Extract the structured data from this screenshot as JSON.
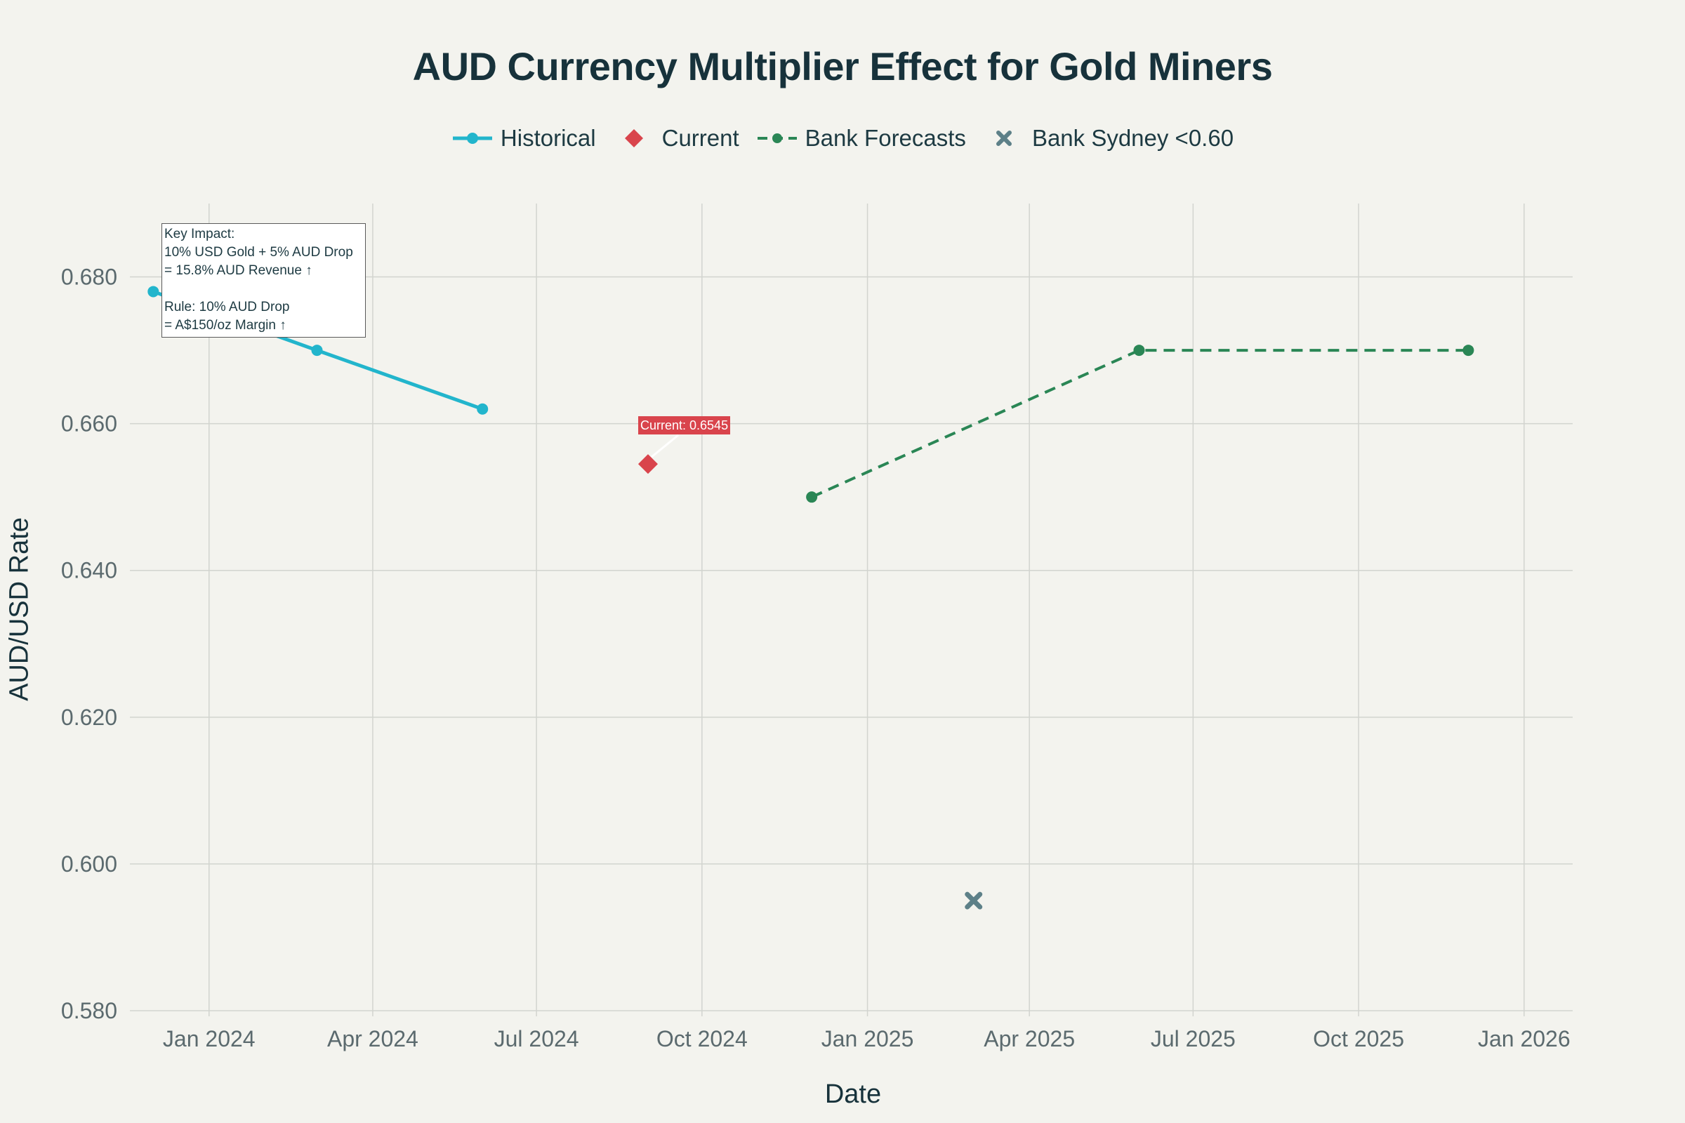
{
  "chart_data": {
    "type": "line",
    "title": "AUD Currency Multiplier Effect for Gold Miners",
    "xlabel": "Date",
    "ylabel": "AUD/USD Rate",
    "x_range": [
      "2023-11-18",
      "2026-01-28"
    ],
    "ylim": [
      0.58,
      0.69
    ],
    "y_ticks": [
      0.58,
      0.6,
      0.62,
      0.64,
      0.66,
      0.68
    ],
    "y_tick_labels": [
      "0.580",
      "0.600",
      "0.620",
      "0.640",
      "0.660",
      "0.680"
    ],
    "x_ticks": [
      "2024-01-01",
      "2024-04-01",
      "2024-07-01",
      "2024-10-01",
      "2025-01-01",
      "2025-04-01",
      "2025-07-01",
      "2025-10-01",
      "2026-01-01"
    ],
    "x_tick_labels": [
      "Jan 2024",
      "Apr 2024",
      "Jul 2024",
      "Oct 2024",
      "Jan 2025",
      "Apr 2025",
      "Jul 2025",
      "Oct 2025",
      "Jan 2026"
    ],
    "grid": true,
    "legend_position": "top-center",
    "series": [
      {
        "name": "Historical",
        "mode": "lines+markers",
        "color": "#22b5cc",
        "x": [
          "2023-12-01",
          "2024-03-01",
          "2024-06-01"
        ],
        "y": [
          0.678,
          0.67,
          0.662
        ]
      },
      {
        "name": "Current",
        "mode": "markers",
        "marker": "diamond",
        "color": "#d9444c",
        "x": [
          "2024-09-01"
        ],
        "y": [
          0.6545
        ]
      },
      {
        "name": "Bank Forecasts",
        "mode": "lines+markers",
        "dash": "dash",
        "color": "#2a8655",
        "x": [
          "2024-12-01",
          "2025-06-01",
          "2025-12-01"
        ],
        "y": [
          0.65,
          0.67,
          0.67
        ]
      },
      {
        "name": "Bank Sydney <0.60",
        "mode": "markers",
        "marker": "x",
        "color": "#5d8088",
        "x": [
          "2025-03-01"
        ],
        "y": [
          0.595
        ]
      }
    ],
    "annotations": {
      "key_impact": "Key Impact:\n10% USD Gold + 5% AUD Drop\n= 15.8% AUD Revenue ↑\n\nRule: 10% AUD Drop\n= A$150/oz Margin ↑",
      "current_label": "Current: 0.6545"
    }
  }
}
